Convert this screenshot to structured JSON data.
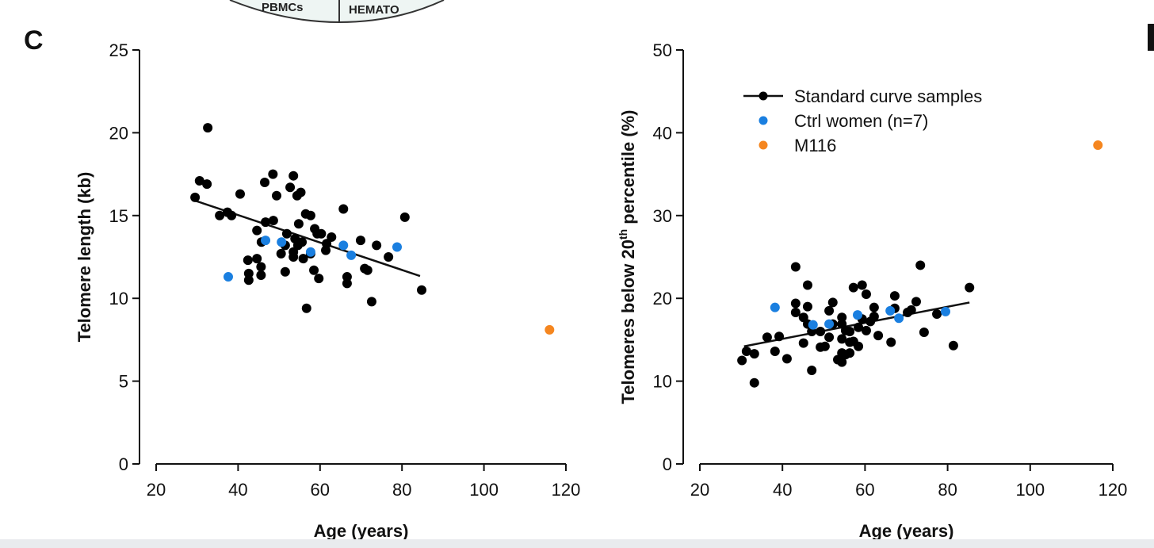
{
  "panel_label": "C",
  "header_fragment": {
    "left_text": "PBMCs",
    "right_text": "HEMATO"
  },
  "colors": {
    "standard": "#000000",
    "ctrl": "#1a7fe0",
    "m116": "#f5861f"
  },
  "chart_data": [
    {
      "type": "scatter",
      "xlabel": "Age (years)",
      "ylabel": "Telomere length (kb)",
      "xlim": [
        20,
        120
      ],
      "ylim": [
        0,
        25
      ],
      "xticks": [
        20,
        40,
        60,
        80,
        100,
        120
      ],
      "yticks": [
        0,
        5,
        10,
        15,
        20,
        25
      ],
      "grid": false,
      "series": [
        {
          "name": "Standard curve samples",
          "color": "#000000",
          "points": [
            [
              29.5,
              16.1
            ],
            [
              30.6,
              17.1
            ],
            [
              32.4,
              16.9
            ],
            [
              32.6,
              20.3
            ],
            [
              35.5,
              15.0
            ],
            [
              37.4,
              15.2
            ],
            [
              38.4,
              15.0
            ],
            [
              40.5,
              16.3
            ],
            [
              42.4,
              12.3
            ],
            [
              42.6,
              11.5
            ],
            [
              42.6,
              11.1
            ],
            [
              44.6,
              14.1
            ],
            [
              44.6,
              12.4
            ],
            [
              45.6,
              11.9
            ],
            [
              45.6,
              11.4
            ],
            [
              45.7,
              13.4
            ],
            [
              46.5,
              17.0
            ],
            [
              48.5,
              17.5
            ],
            [
              46.7,
              14.6
            ],
            [
              48.6,
              14.7
            ],
            [
              49.4,
              16.2
            ],
            [
              50.5,
              12.7
            ],
            [
              51.5,
              13.2
            ],
            [
              51.5,
              11.6
            ],
            [
              51.9,
              13.9
            ],
            [
              52.7,
              16.7
            ],
            [
              53.5,
              17.4
            ],
            [
              53.5,
              12.8
            ],
            [
              53.5,
              12.5
            ],
            [
              53.9,
              13.6
            ],
            [
              54.4,
              16.2
            ],
            [
              54.6,
              13.2
            ],
            [
              54.8,
              14.5
            ],
            [
              55.3,
              16.4
            ],
            [
              55.9,
              12.4
            ],
            [
              55.6,
              13.4
            ],
            [
              56.7,
              9.4
            ],
            [
              56.5,
              15.1
            ],
            [
              57.7,
              15.0
            ],
            [
              58.7,
              14.2
            ],
            [
              57.7,
              12.7
            ],
            [
              58.5,
              11.7
            ],
            [
              59.7,
              11.2
            ],
            [
              59.3,
              13.9
            ],
            [
              60.3,
              13.9
            ],
            [
              61.4,
              12.9
            ],
            [
              61.6,
              13.3
            ],
            [
              62.8,
              13.7
            ],
            [
              65.7,
              15.4
            ],
            [
              66.6,
              11.3
            ],
            [
              66.6,
              10.9
            ],
            [
              69.9,
              13.5
            ],
            [
              71.6,
              11.7
            ],
            [
              70.9,
              11.8
            ],
            [
              72.6,
              9.8
            ],
            [
              73.8,
              13.2
            ],
            [
              76.7,
              12.5
            ],
            [
              80.7,
              14.9
            ],
            [
              84.8,
              10.5
            ]
          ],
          "fit_line": [
            [
              29.5,
              15.9
            ],
            [
              84.4,
              11.35
            ]
          ]
        },
        {
          "name": "Ctrl women (n=7)",
          "color": "#1a7fe0",
          "points": [
            [
              37.6,
              11.3
            ],
            [
              46.7,
              13.5
            ],
            [
              50.6,
              13.4
            ],
            [
              57.7,
              12.8
            ],
            [
              65.7,
              13.2
            ],
            [
              67.6,
              12.6
            ],
            [
              78.8,
              13.1
            ]
          ]
        },
        {
          "name": "M116",
          "color": "#f5861f",
          "points": [
            [
              116,
              8.1
            ]
          ]
        }
      ]
    },
    {
      "type": "scatter",
      "xlabel": "Age (years)",
      "ylabel_prefix": "Telomeres below 20",
      "ylabel_sup": "th",
      "ylabel_suffix": " percentile (%)",
      "xlim": [
        20,
        120
      ],
      "ylim": [
        0,
        50
      ],
      "xticks": [
        20,
        40,
        60,
        80,
        100,
        120
      ],
      "yticks": [
        0,
        10,
        20,
        30,
        40,
        50
      ],
      "grid": false,
      "legend_position": "top-left",
      "legend": [
        "Standard curve samples",
        "Ctrl women (n=7)",
        "M116"
      ],
      "series": [
        {
          "name": "Standard curve samples",
          "color": "#000000",
          "points": [
            [
              30.2,
              12.5
            ],
            [
              31.3,
              13.6
            ],
            [
              33.2,
              13.3
            ],
            [
              33.2,
              9.8
            ],
            [
              36.3,
              15.3
            ],
            [
              38.2,
              13.6
            ],
            [
              39.2,
              15.4
            ],
            [
              41.1,
              12.7
            ],
            [
              43.2,
              23.8
            ],
            [
              43.2,
              19.4
            ],
            [
              43.2,
              18.3
            ],
            [
              45.1,
              17.7
            ],
            [
              45.1,
              14.6
            ],
            [
              46.1,
              21.6
            ],
            [
              46.1,
              19.0
            ],
            [
              46.1,
              16.9
            ],
            [
              47.1,
              16.0
            ],
            [
              47.1,
              11.3
            ],
            [
              49.2,
              16.0
            ],
            [
              49.2,
              14.1
            ],
            [
              50.3,
              14.2
            ],
            [
              51.3,
              18.5
            ],
            [
              51.3,
              15.3
            ],
            [
              52.2,
              19.5
            ],
            [
              52.2,
              16.9
            ],
            [
              54.4,
              17.7
            ],
            [
              54.4,
              16.9
            ],
            [
              54.4,
              15.1
            ],
            [
              54.4,
              13.4
            ],
            [
              53.4,
              12.6
            ],
            [
              54.4,
              12.3
            ],
            [
              55.3,
              13.2
            ],
            [
              56.3,
              13.4
            ],
            [
              55.3,
              16.1
            ],
            [
              56.3,
              16.0
            ],
            [
              56.3,
              14.7
            ],
            [
              57.2,
              14.8
            ],
            [
              58.4,
              14.2
            ],
            [
              58.4,
              16.5
            ],
            [
              57.2,
              21.3
            ],
            [
              59.3,
              21.6
            ],
            [
              60.3,
              20.5
            ],
            [
              59.3,
              17.5
            ],
            [
              60.3,
              16.1
            ],
            [
              61.3,
              17.2
            ],
            [
              62.2,
              18.9
            ],
            [
              62.2,
              17.8
            ],
            [
              63.2,
              15.5
            ],
            [
              66.3,
              14.7
            ],
            [
              67.2,
              20.3
            ],
            [
              67.2,
              18.8
            ],
            [
              70.3,
              18.3
            ],
            [
              71.2,
              18.6
            ],
            [
              72.4,
              19.6
            ],
            [
              73.4,
              24.0
            ],
            [
              74.3,
              15.9
            ],
            [
              77.4,
              18.1
            ],
            [
              81.4,
              14.3
            ],
            [
              85.3,
              21.3
            ]
          ],
          "fit_line": [
            [
              30.7,
              14.2
            ],
            [
              85.3,
              19.5
            ]
          ]
        },
        {
          "name": "Ctrl women (n=7)",
          "color": "#1a7fe0",
          "points": [
            [
              38.2,
              18.9
            ],
            [
              47.4,
              16.8
            ],
            [
              51.3,
              16.9
            ],
            [
              58.2,
              18.0
            ],
            [
              66.1,
              18.5
            ],
            [
              68.2,
              17.6
            ],
            [
              79.5,
              18.4
            ]
          ]
        },
        {
          "name": "M116",
          "color": "#f5861f",
          "points": [
            [
              116.4,
              38.5
            ]
          ]
        }
      ]
    }
  ]
}
